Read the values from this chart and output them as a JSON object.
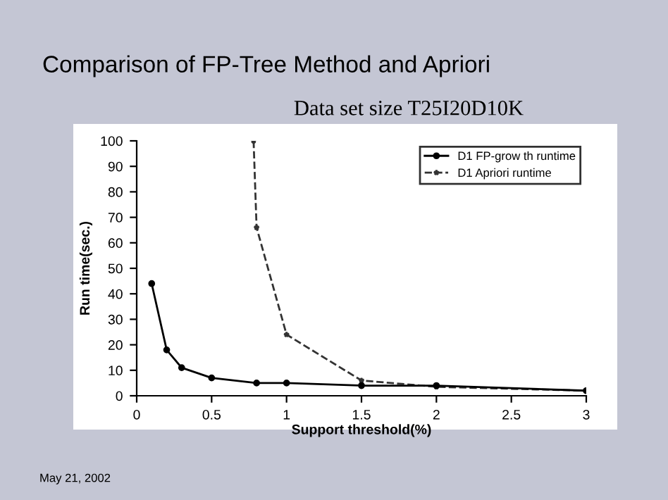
{
  "chart_data": {
    "type": "line",
    "title": "Comparison of FP-Tree Method and Apriori",
    "subtitle": "Data set size T25I20D10K",
    "xlabel": "Support threshold(%)",
    "ylabel": "Run time(sec.)",
    "annotations": [
      "May 21, 2002"
    ],
    "series": [
      {
        "name": "D1 FP-grow th runtime",
        "color": "#000000",
        "marker": "circle",
        "line_style": "solid",
        "x": [
          0.1,
          0.2,
          0.3,
          0.5,
          0.8,
          1,
          1.5,
          2,
          3
        ],
        "values": [
          44,
          18,
          11,
          7,
          5,
          5,
          4,
          4,
          2
        ]
      },
      {
        "name": "D1 Apriori runtime",
        "color": "#333333",
        "marker": "star",
        "line_style": "dashed",
        "x": [
          0.78,
          0.8,
          1,
          1.5,
          2,
          3
        ],
        "values": [
          100,
          66,
          24,
          6,
          3.5,
          2
        ]
      }
    ],
    "xlim": [
      0,
      3
    ],
    "xticks": [
      0,
      0.5,
      1,
      1.5,
      2,
      2.5,
      3
    ],
    "ylim": [
      0,
      100
    ],
    "yticks": [
      0,
      10,
      20,
      30,
      40,
      50,
      60,
      70,
      80,
      90,
      100
    ],
    "grid": false,
    "legend": "top right"
  }
}
